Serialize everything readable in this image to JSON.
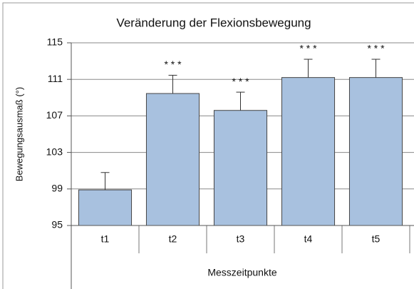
{
  "chart_data": {
    "type": "bar",
    "title": "Veränderung der Flexionsbewegung",
    "y_label": "Bewegungsausmaß (°)",
    "x_label": "Messzeitpunkte",
    "categories": [
      "t1",
      "t2",
      "t3",
      "t4",
      "t5"
    ],
    "values": [
      98.9,
      109.45,
      107.6,
      111.2,
      111.2
    ],
    "errors": [
      1.9,
      2.0,
      2.0,
      2.0,
      2.0
    ],
    "significance": [
      null,
      "* * *",
      "* * *",
      "* * *",
      "* * *"
    ],
    "color": "#a8c1df",
    "ylim": [
      95,
      115
    ],
    "yticks": [
      95,
      99,
      103,
      107,
      111,
      115
    ],
    "grid": true
  }
}
